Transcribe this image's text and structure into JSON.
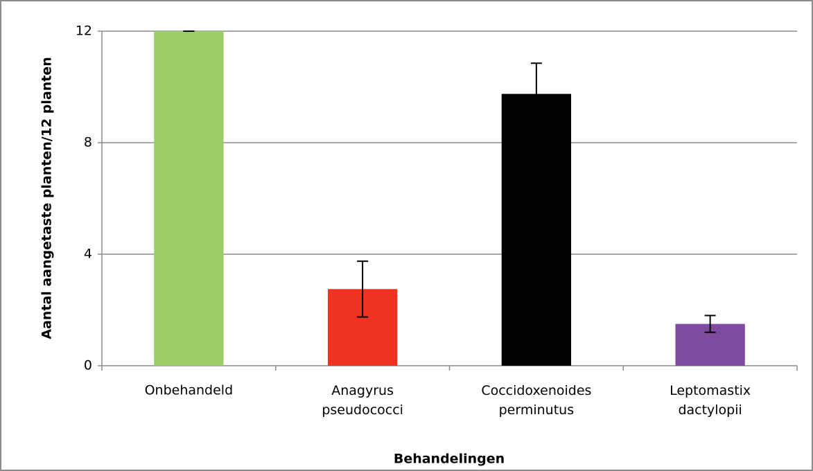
{
  "chart_data": {
    "type": "bar",
    "categories": [
      "Onbehandeld",
      "Anagyrus pseudococci",
      "Coccidoxenoides perminutus",
      "Leptomastix dactylopii"
    ],
    "values": [
      12,
      2.75,
      9.75,
      1.5
    ],
    "errors": [
      0,
      1,
      1.1,
      0.3
    ],
    "colors": [
      "#9dcc66",
      "#ef3323",
      "#000000",
      "#7f4b9f"
    ],
    "ylim": [
      0,
      12
    ],
    "yticks": [
      0,
      4,
      8,
      12
    ],
    "grid": true,
    "xlabel": "Behandelingen",
    "ylabel": "Aantal aangetaste planten/12 planten"
  }
}
